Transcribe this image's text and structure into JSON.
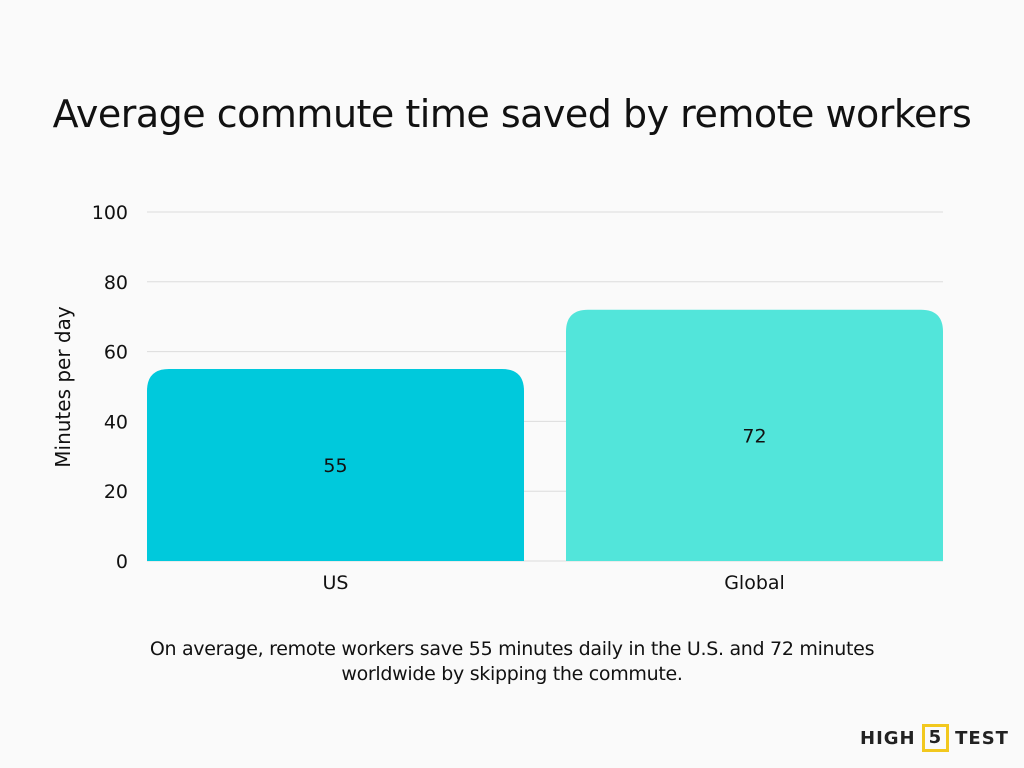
{
  "chart_data": {
    "type": "bar",
    "title": "Average commute time saved by remote workers",
    "xlabel": "",
    "ylabel": "Minutes per day",
    "categories": [
      "US",
      "Global"
    ],
    "values": [
      55,
      72
    ],
    "data_labels": [
      "55",
      "72"
    ],
    "colors": [
      "#00c9dc",
      "#52e5da"
    ],
    "ylim": [
      0,
      100
    ],
    "yticks": [
      0,
      20,
      40,
      60,
      80,
      100
    ],
    "grid": true,
    "legend": "none"
  },
  "caption": "On average, remote workers save 55 minutes daily in the U.S. and 72 minutes worldwide by skipping the commute.",
  "logo": {
    "left": "HIGH",
    "middle": "5",
    "right": "TEST",
    "accent": "#f2c81e"
  }
}
